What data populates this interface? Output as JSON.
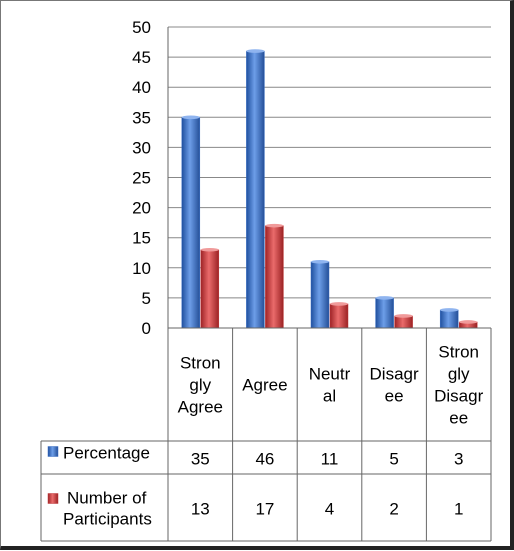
{
  "chart_data": {
    "type": "bar",
    "categories": [
      [
        "Stron",
        "gly",
        "Agree"
      ],
      [
        "Agree"
      ],
      [
        "Neutr",
        "al"
      ],
      [
        "Disagr",
        "ee"
      ],
      [
        "Stron",
        "gly",
        "Disagr",
        "ee"
      ]
    ],
    "series": [
      {
        "name": "Percentage",
        "values": [
          35,
          46,
          11,
          5,
          3
        ],
        "color": "#3b6fc4",
        "legend": [
          "Percentage"
        ]
      },
      {
        "name": "Number of Participants",
        "values": [
          13,
          17,
          4,
          2,
          1
        ],
        "color": "#c0393b",
        "legend": [
          "Number of",
          "Participants"
        ]
      }
    ],
    "ylim": [
      0,
      50
    ],
    "yticks": [
      "0",
      "5",
      "10",
      "15",
      "20",
      "25",
      "30",
      "35",
      "40",
      "45",
      "50"
    ],
    "grid": true,
    "data_table": true
  },
  "colors": {
    "blue": "#3b6fc4",
    "red": "#c0393b",
    "grid": "#888888"
  }
}
